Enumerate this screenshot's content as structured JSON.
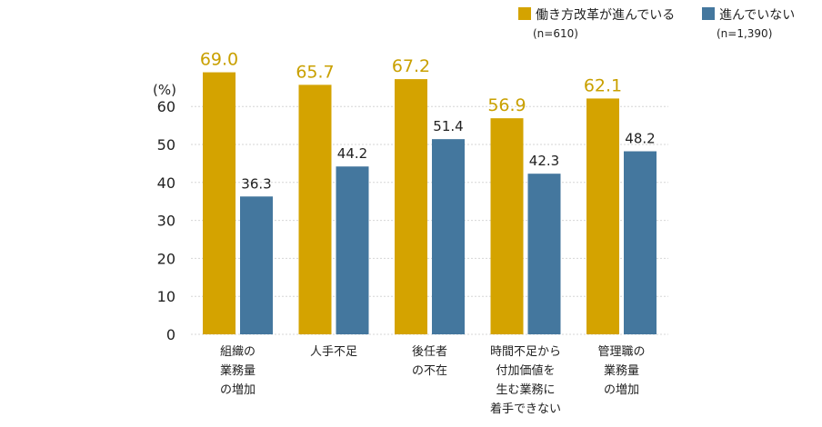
{
  "chart_data": {
    "type": "bar",
    "unit_label": "(%)",
    "ylim": [
      0,
      70
    ],
    "yticks": [
      0,
      10,
      20,
      30,
      40,
      50,
      60
    ],
    "grid": true,
    "legend_position": "top-right",
    "categories": [
      [
        "組織の",
        "業務量",
        "の増加"
      ],
      [
        "人手不足"
      ],
      [
        "後任者",
        "の不在"
      ],
      [
        "時間不足から",
        "付加価値を",
        "生む業務に",
        "着手できない"
      ],
      [
        "管理職の",
        "業務量",
        "の増加"
      ]
    ],
    "series": [
      {
        "name": "働き方改革が進んでいる",
        "n_label": "(n=610)",
        "color": "#d4a300",
        "values": [
          69.0,
          65.7,
          67.2,
          56.9,
          62.1
        ],
        "value_labels": [
          "69.0",
          "65.7",
          "67.2",
          "56.9",
          "62.1"
        ]
      },
      {
        "name": "進んでいない",
        "n_label": "(n=1,390)",
        "color": "#44779e",
        "values": [
          36.3,
          44.2,
          51.4,
          42.3,
          48.2
        ],
        "value_labels": [
          "36.3",
          "44.2",
          "51.4",
          "42.3",
          "48.2"
        ]
      }
    ]
  }
}
